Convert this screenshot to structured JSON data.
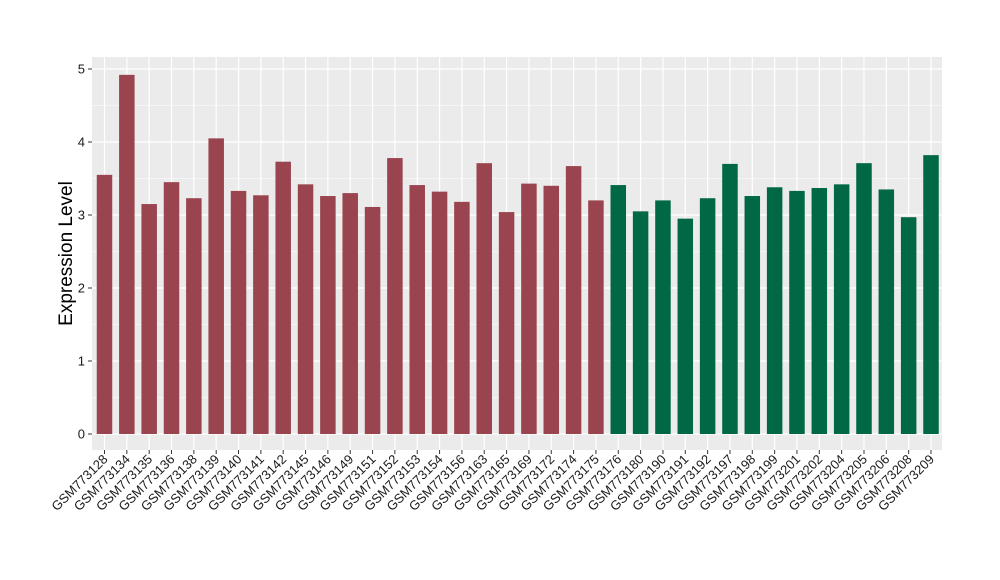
{
  "chart_data": {
    "type": "bar",
    "title": "",
    "xlabel": "",
    "ylabel": "Expression Level",
    "ylim": [
      0,
      5.2
    ],
    "yticks": [
      0,
      1,
      2,
      3,
      4,
      5
    ],
    "grid": true,
    "legend": "none",
    "categories": [
      "GSM773128",
      "GSM773134",
      "GSM773135",
      "GSM773136",
      "GSM773138",
      "GSM773139",
      "GSM773140",
      "GSM773141",
      "GSM773142",
      "GSM773145",
      "GSM773146",
      "GSM773149",
      "GSM773151",
      "GSM773152",
      "GSM773153",
      "GSM773154",
      "GSM773156",
      "GSM773163",
      "GSM773165",
      "GSM773169",
      "GSM773172",
      "GSM773174",
      "GSM773175",
      "GSM773176",
      "GSM773180",
      "GSM773190",
      "GSM773191",
      "GSM773192",
      "GSM773197",
      "GSM773198",
      "GSM773199",
      "GSM773201",
      "GSM773202",
      "GSM773204",
      "GSM773205",
      "GSM773206",
      "GSM773208",
      "GSM773209"
    ],
    "values": [
      3.55,
      4.92,
      3.15,
      3.45,
      3.23,
      4.05,
      3.33,
      3.27,
      3.73,
      3.42,
      3.26,
      3.3,
      3.11,
      3.78,
      3.41,
      3.32,
      3.18,
      3.71,
      3.04,
      3.43,
      3.4,
      3.67,
      3.2,
      3.41,
      3.05,
      3.2,
      2.95,
      3.23,
      3.7,
      3.26,
      3.38,
      3.33,
      3.37,
      3.42,
      3.71,
      3.35,
      2.97,
      3.82
    ],
    "group_sizes": [
      23,
      15
    ],
    "colors": [
      "#9a4450",
      "#016846"
    ]
  },
  "style": {
    "panel_background": "#ebebeb",
    "grid_color": "#ffffff",
    "tick_color": "#333333"
  }
}
